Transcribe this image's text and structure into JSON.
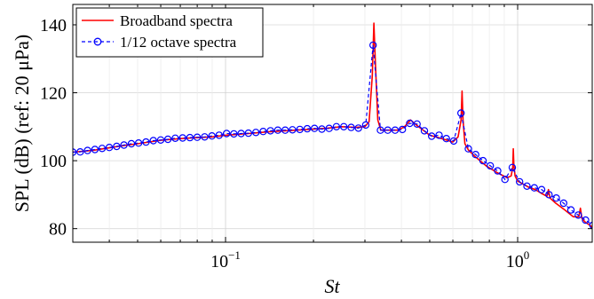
{
  "chart_data": {
    "type": "line",
    "xlabel": "St",
    "ylabel": "SPL (dB) (ref: 20 μPa)",
    "xscale": "log",
    "xlim": [
      0.03,
      1.8
    ],
    "ylim": [
      76,
      146
    ],
    "grid": true,
    "legend_position": "top-left",
    "x_ticks": [
      {
        "value": 0.1,
        "base": "10",
        "exp": "−1"
      },
      {
        "value": 1.0,
        "base": "10",
        "exp": "0"
      }
    ],
    "y_ticks": [
      80,
      100,
      120,
      140
    ],
    "series": [
      {
        "name": "Broadband spectra",
        "color": "#ff0000",
        "style": "solid",
        "x": [
          0.03,
          0.035,
          0.04,
          0.045,
          0.05,
          0.06,
          0.07,
          0.08,
          0.09,
          0.1,
          0.12,
          0.14,
          0.16,
          0.19,
          0.22,
          0.25,
          0.28,
          0.3,
          0.31,
          0.318,
          0.322,
          0.326,
          0.332,
          0.34,
          0.36,
          0.39,
          0.41,
          0.43,
          0.45,
          0.5,
          0.55,
          0.6,
          0.625,
          0.64,
          0.645,
          0.65,
          0.66,
          0.68,
          0.72,
          0.78,
          0.85,
          0.92,
          0.95,
          0.962,
          0.966,
          0.97,
          0.98,
          1.0,
          1.05,
          1.1,
          1.15,
          1.2,
          1.26,
          1.275,
          1.29,
          1.35,
          1.45,
          1.55,
          1.62,
          1.64,
          1.66,
          1.7,
          1.8
        ],
        "y": [
          102.5,
          103.0,
          103.8,
          104.5,
          105.0,
          106.0,
          106.5,
          106.8,
          107.0,
          107.5,
          108.0,
          108.5,
          108.8,
          109.2,
          109.5,
          110.0,
          109.8,
          110.0,
          111.5,
          125.0,
          140.5,
          128.0,
          112.0,
          109.0,
          109.0,
          109.0,
          110.0,
          112.0,
          110.5,
          107.5,
          106.5,
          105.5,
          107.0,
          112.0,
          120.5,
          112.0,
          105.0,
          103.0,
          101.0,
          98.5,
          96.5,
          95.0,
          95.5,
          98.0,
          103.5,
          99.0,
          95.5,
          94.0,
          93.0,
          92.0,
          91.5,
          90.5,
          89.5,
          91.5,
          89.0,
          87.5,
          85.5,
          83.5,
          83.5,
          86.0,
          83.0,
          82.0,
          80.5
        ]
      },
      {
        "name": "1/12 octave spectra",
        "color": "#0000ff",
        "style": "dashed-circle-markers",
        "x": [
          0.03,
          0.0318,
          0.0337,
          0.0357,
          0.0378,
          0.04,
          0.0424,
          0.0449,
          0.0476,
          0.0504,
          0.0534,
          0.0566,
          0.06,
          0.0635,
          0.0673,
          0.0713,
          0.0755,
          0.08,
          0.0848,
          0.0898,
          0.0951,
          0.1008,
          0.1068,
          0.1131,
          0.1198,
          0.127,
          0.1345,
          0.1425,
          0.151,
          0.16,
          0.1695,
          0.1796,
          0.1903,
          0.2016,
          0.2136,
          0.2263,
          0.2397,
          0.254,
          0.2691,
          0.2851,
          0.302,
          0.32,
          0.339,
          0.3592,
          0.3805,
          0.4032,
          0.4271,
          0.4525,
          0.4794,
          0.5079,
          0.5381,
          0.5701,
          0.604,
          0.6399,
          0.678,
          0.7183,
          0.761,
          0.8062,
          0.8541,
          0.9049,
          0.9587,
          1.0157,
          1.0761,
          1.1401,
          1.2079,
          1.2797,
          1.3558,
          1.4364,
          1.5218,
          1.6123,
          1.7081,
          1.8097
        ],
        "y": [
          102.5,
          102.6,
          103.0,
          103.3,
          103.6,
          103.9,
          104.2,
          104.6,
          105.0,
          105.2,
          105.5,
          105.9,
          106.1,
          106.3,
          106.6,
          106.7,
          106.8,
          106.9,
          107.0,
          107.3,
          107.5,
          108.0,
          107.9,
          108.0,
          108.1,
          108.3,
          108.6,
          108.8,
          109.0,
          109.0,
          109.1,
          109.2,
          109.4,
          109.5,
          109.3,
          109.5,
          110.0,
          110.0,
          109.8,
          109.6,
          110.5,
          134.0,
          109.0,
          109.0,
          109.0,
          109.2,
          111.0,
          110.8,
          108.8,
          107.2,
          107.5,
          106.5,
          105.8,
          114.0,
          103.5,
          101.8,
          100.0,
          98.5,
          97.0,
          94.5,
          98.0,
          93.8,
          92.5,
          92.0,
          91.5,
          90.0,
          89.0,
          87.5,
          85.5,
          84.0,
          82.5,
          81.0
        ]
      }
    ]
  }
}
